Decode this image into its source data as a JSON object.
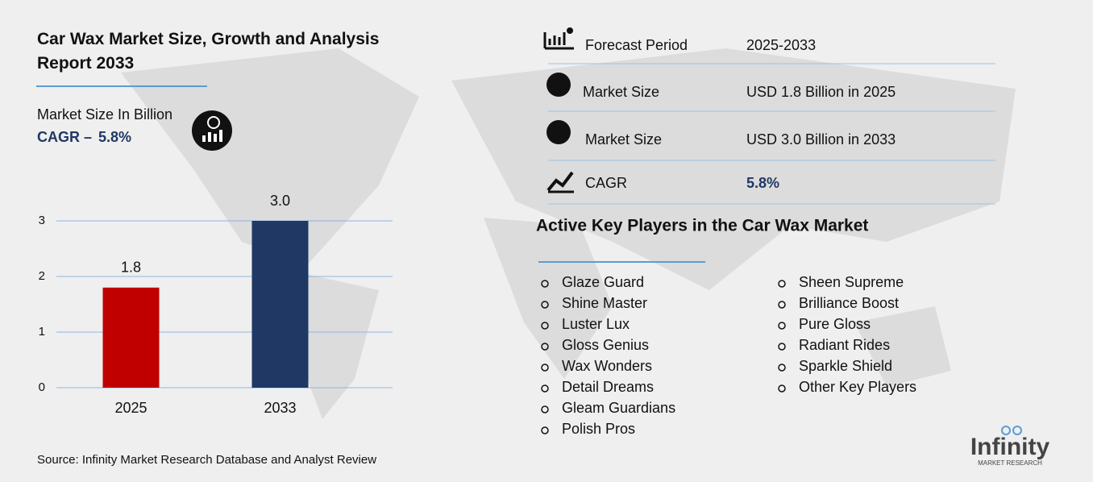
{
  "chart_data": {
    "type": "bar",
    "title": "Car Wax Market Size, Growth and Analysis Report 2033",
    "subtitle": "Market Size In Billion",
    "cagr_label": "CAGR –",
    "cagr_value": "5.8%",
    "categories": [
      "2025",
      "2033"
    ],
    "values": [
      1.8,
      3.0
    ],
    "value_labels": [
      "1.8",
      "3.0"
    ],
    "colors": [
      "#c00000",
      "#1f3864"
    ],
    "ylim": [
      0,
      3
    ],
    "yticks": [
      0,
      1,
      2,
      3
    ],
    "grid": true,
    "source": "Source: Infinity Market Research Database and Analyst Review"
  },
  "stats": [
    {
      "label": "Forecast Period",
      "value": "2025-2033"
    },
    {
      "label": "Market Size",
      "value": "USD 1.8 Billion in 2025"
    },
    {
      "label": "Market Size",
      "value": "USD  3.0 Billion in 2033"
    },
    {
      "label": "CAGR",
      "value": "5.8%"
    }
  ],
  "players": {
    "title": "Active Key Players in the Car Wax Market",
    "columns": [
      [
        "Glaze Guard",
        "Shine Master",
        "Luster Lux",
        "Gloss Genius",
        "Wax Wonders",
        "Detail Dreams",
        "Gleam Guardians",
        "Polish Pros"
      ],
      [
        "Sheen Supreme",
        "Brilliance Boost",
        "Pure Gloss",
        "Radiant Rides",
        "Sparkle Shield",
        "Other Key Players"
      ]
    ]
  },
  "logo": {
    "name": "Infinity",
    "tagline": "MARKET RESEARCH"
  }
}
